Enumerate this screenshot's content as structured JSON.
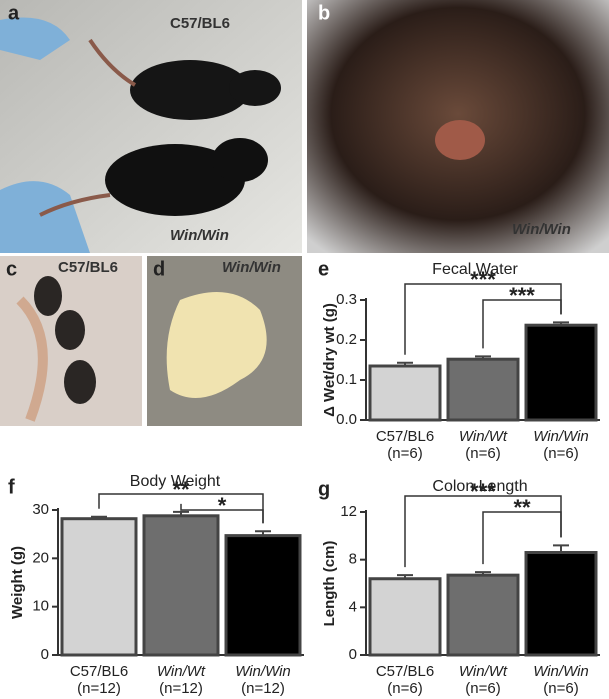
{
  "panels": [
    {
      "label": "a",
      "texts": [
        "C57/BL6",
        "Win/Win"
      ]
    },
    {
      "label": "b",
      "texts": [
        "Win/Win"
      ]
    },
    {
      "label": "c",
      "texts": [
        "C57/BL6"
      ]
    },
    {
      "label": "d",
      "texts": [
        "Win/Win"
      ]
    }
  ],
  "chart_data": [
    {
      "type": "bar",
      "panel_label": "e",
      "title": "Fecal Water",
      "y_label": "Δ Wet/dry wt (g)",
      "categories": [
        "C57/BL6",
        "Win/Wt",
        "Win/Win"
      ],
      "sample_sizes": [
        "(n=6)",
        "(n=6)",
        "(n=6)"
      ],
      "values": [
        0.135,
        0.152,
        0.237
      ],
      "errors": [
        0.008,
        0.007,
        0.007
      ],
      "colors": [
        "#d3d3d3",
        "#6e6e6e",
        "#000000"
      ],
      "ylim": [
        0,
        0.3
      ],
      "yticks": [
        {
          "value": 0,
          "label": "0.0"
        },
        0.1,
        0.2,
        0.3
      ],
      "annotations": [
        "***",
        "***"
      ]
    },
    {
      "type": "bar",
      "panel_label": "f",
      "title": "Body Weight",
      "y_label": "Weight (g)",
      "categories": [
        "C57/BL6",
        "Win/Wt",
        "Win/Win"
      ],
      "sample_sizes": [
        "(n=12)",
        "(n=12)",
        "(n=12)"
      ],
      "values": [
        28.2,
        28.8,
        24.7
      ],
      "errors": [
        0.4,
        0.8,
        0.9
      ],
      "colors": [
        "#d3d3d3",
        "#6e6e6e",
        "#000000"
      ],
      "ylim": [
        0,
        30
      ],
      "yticks": [
        0,
        10,
        20,
        30
      ],
      "annotations": [
        "**",
        "*"
      ]
    },
    {
      "type": "bar",
      "panel_label": "g",
      "title": "Colon Length",
      "y_label": "Length (cm)",
      "categories": [
        "C57/BL6",
        "Win/Wt",
        "Win/Win"
      ],
      "sample_sizes": [
        "(n=6)",
        "(n=6)",
        "(n=6)"
      ],
      "values": [
        6.4,
        6.7,
        8.6
      ],
      "errors": [
        0.3,
        0.25,
        0.6
      ],
      "colors": [
        "#d3d3d3",
        "#6e6e6e",
        "#000000"
      ],
      "ylim": [
        0,
        12
      ],
      "yticks": [
        0,
        4,
        8,
        12
      ],
      "annotations": [
        "***",
        "**"
      ]
    }
  ]
}
